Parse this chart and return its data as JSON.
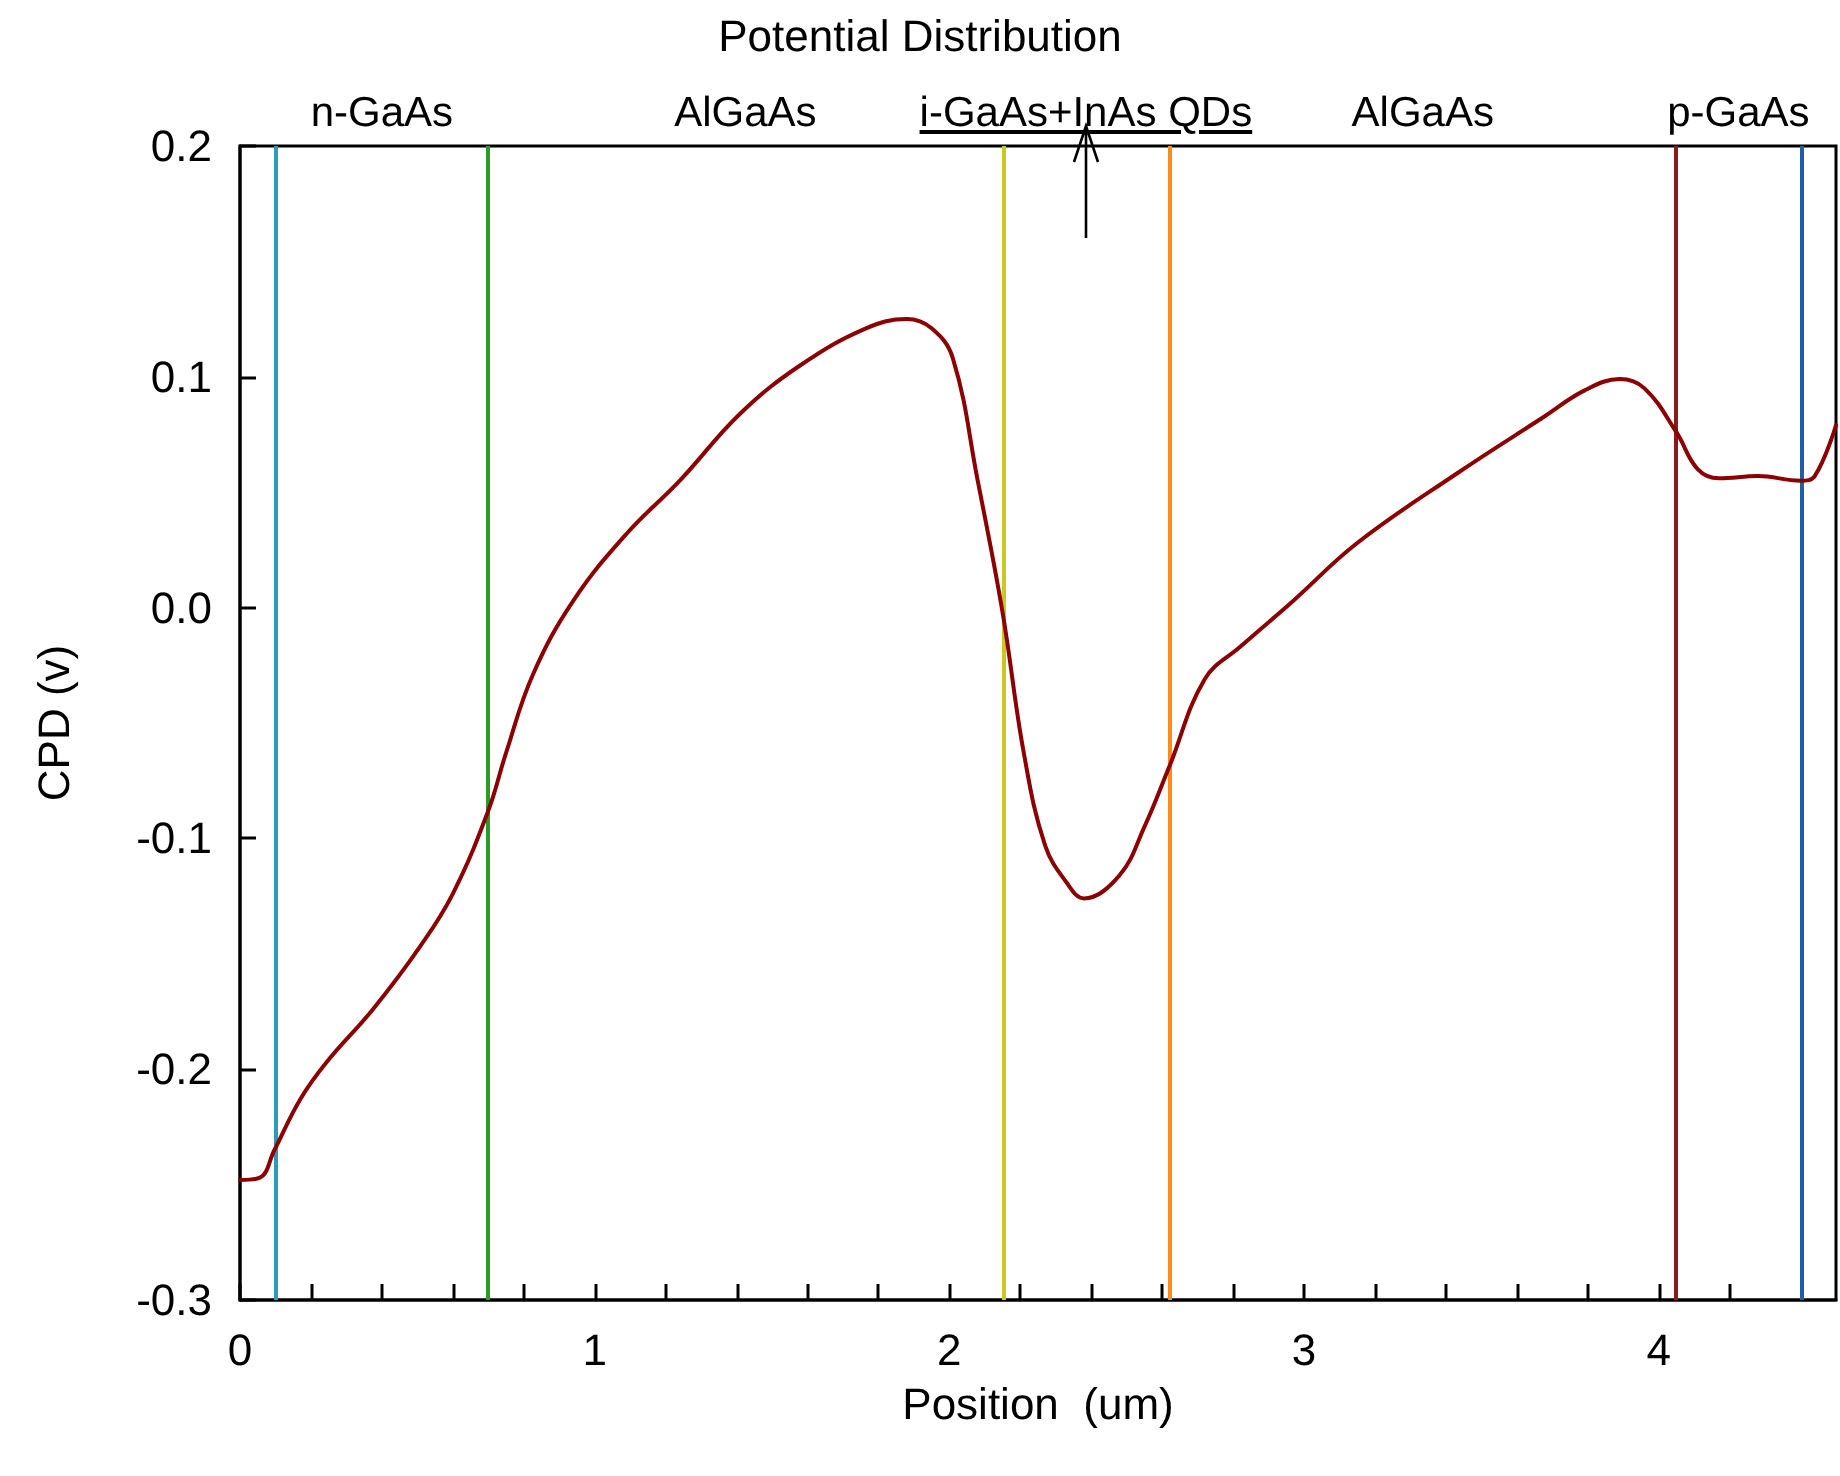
{
  "chart_data": {
    "type": "line",
    "title": "Potential Distribution",
    "xlabel": "Position  (um)",
    "ylabel": "CPD (v)",
    "xlim": [
      0,
      4.5
    ],
    "ylim": [
      -0.3,
      0.2
    ],
    "xticks": [
      0,
      {
        "value": 0.2,
        "label": null
      },
      {
        "value": 0.4,
        "label": null
      },
      {
        "value": 0.6,
        "label": null
      },
      {
        "value": 0.8,
        "label": null
      },
      1,
      {
        "value": 1.2,
        "label": null
      },
      {
        "value": 1.4,
        "label": null
      },
      {
        "value": 1.6,
        "label": null
      },
      {
        "value": 1.8,
        "label": null
      },
      2,
      {
        "value": 2.2,
        "label": null
      },
      {
        "value": 2.4,
        "label": null
      },
      {
        "value": 2.6,
        "label": null
      },
      {
        "value": 2.8,
        "label": null
      },
      3,
      {
        "value": 3.2,
        "label": null
      },
      {
        "value": 3.4,
        "label": null
      },
      {
        "value": 3.6,
        "label": null
      },
      {
        "value": 3.8,
        "label": null
      },
      4,
      {
        "value": 4.2,
        "label": null
      },
      {
        "value": 4.4,
        "label": null
      }
    ],
    "yticks": [
      -0.3,
      -0.2,
      -0.1,
      {
        "value": 0,
        "label": "0.0"
      },
      0.1,
      0.2
    ],
    "grid": false,
    "marker": "none",
    "line_style": "solid",
    "series": [
      {
        "color": "#8b0000",
        "x": [
          0,
          0.056,
          0.097,
          0.17,
          0.244,
          0.375,
          0.507,
          0.6,
          0.7,
          0.75,
          0.826,
          0.94,
          1.09,
          1.24,
          1.41,
          1.58,
          1.765,
          1.88,
          1.95,
          2.01,
          2.08,
          2.15,
          2.21,
          2.27,
          2.33,
          2.38,
          2.48,
          2.55,
          2.62,
          2.72,
          2.82,
          2.97,
          3.15,
          3.43,
          3.68,
          3.79,
          3.89,
          3.96,
          4.05,
          4.11,
          4.17,
          4.28,
          4.4,
          4.44,
          4.5
        ],
        "values": [
          -0.248,
          -0.247,
          -0.235,
          -0.213,
          -0.197,
          -0.174,
          -0.147,
          -0.124,
          -0.088,
          -0.063,
          -0.029,
          0.003,
          0.032,
          0.055,
          0.084,
          0.105,
          0.121,
          0.125,
          0.121,
          0.108,
          0.055,
          -0.002,
          -0.063,
          -0.103,
          -0.119,
          -0.126,
          -0.116,
          -0.095,
          -0.069,
          -0.031,
          -0.017,
          0.003,
          0.028,
          0.058,
          0.083,
          0.094,
          0.099,
          0.095,
          0.076,
          0.06,
          0.056,
          0.057,
          0.055,
          0.057,
          0.079
        ]
      }
    ],
    "ref_lines": [
      {
        "axis": "x",
        "value": 0.1,
        "color": "#2a9db5"
      },
      {
        "axis": "x",
        "value": 0.7,
        "color": "#2a9a2a"
      },
      {
        "axis": "x",
        "value": 2.15,
        "color": "#c8c820"
      },
      {
        "axis": "x",
        "value": 2.62,
        "color": "#ff8c1a"
      },
      {
        "axis": "x",
        "value": 4.05,
        "color": "#8b1a1a"
      },
      {
        "axis": "x",
        "value": 4.4,
        "color": "#1f5fa8"
      }
    ],
    "annotations": [
      "n-GaAs",
      "AlGaAs",
      "i-GaAs+InAs QDs",
      "AlGaAs",
      "p-GaAs"
    ]
  }
}
